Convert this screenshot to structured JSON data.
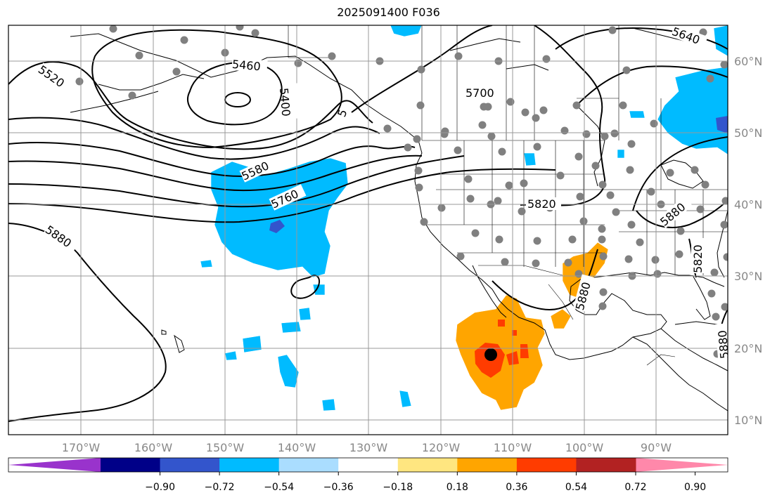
{
  "title": "2025091400 F036",
  "lon_ticks": [
    "170°W",
    "160°W",
    "150°W",
    "140°W",
    "130°W",
    "120°W",
    "110°W",
    "100°W",
    "90°W"
  ],
  "lat_ticks": [
    "60°N",
    "50°N",
    "40°N",
    "30°N",
    "20°N",
    "10°N"
  ],
  "contour_labels": [
    "5520",
    "5460",
    "5400",
    "5",
    "5580",
    "5760",
    "5700",
    "5820",
    "5880",
    "5880",
    "5640",
    "5820",
    "5880",
    "5880"
  ],
  "colorbar": {
    "colors": [
      "#9933cc",
      "#000088",
      "#3355cc",
      "#00bbff",
      "#aaddff",
      "#ffffff",
      "#ffe680",
      "#ffa500",
      "#ff3c00",
      "#b22222",
      "#ff88aa"
    ],
    "tick_labels": [
      "−0.90",
      "−0.72",
      "−0.54",
      "−0.36",
      "−0.18",
      "0.18",
      "0.36",
      "0.54",
      "0.72",
      "0.90"
    ]
  },
  "colors": {
    "neg_fill": "#00bbff",
    "pos_fill": "#ffa500",
    "strong_pos": "#ff3c00",
    "station": "#808080",
    "gridline": "#999999"
  },
  "markers": {
    "storm_center": "black-dot"
  }
}
